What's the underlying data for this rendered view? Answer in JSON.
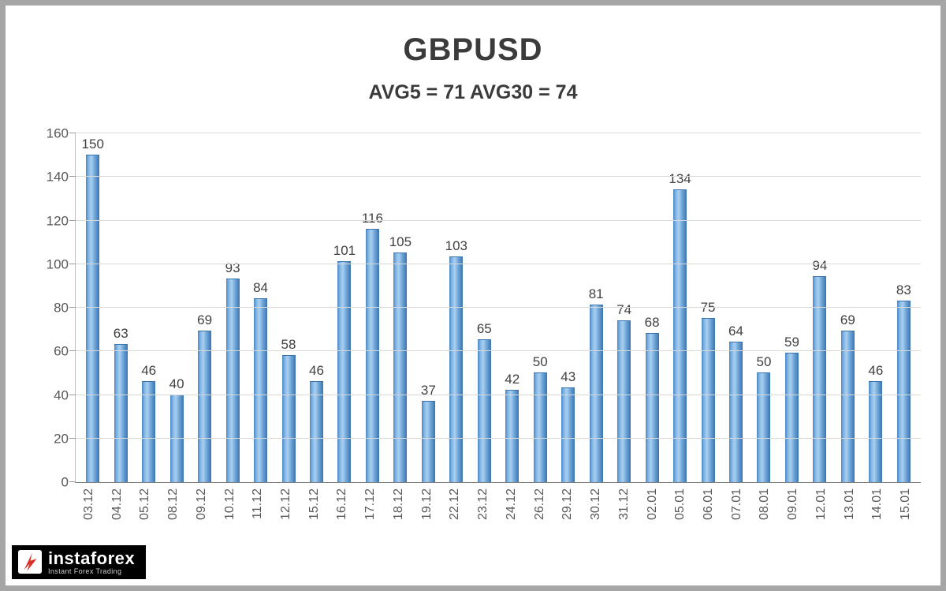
{
  "header": {
    "title": "GBPUSD",
    "subtitle": "AVG5 = 71 AVG30 = 74"
  },
  "logo": {
    "brand": "instaforex",
    "tagline": "Instant Forex Trading"
  },
  "chart_data": {
    "type": "bar",
    "title": "GBPUSD",
    "subtitle": "AVG5 = 71 AVG30 = 74",
    "categories": [
      "03.12",
      "04.12",
      "05.12",
      "08.12",
      "09.12",
      "10.12",
      "11.12",
      "12.12",
      "15.12",
      "16.12",
      "17.12",
      "18.12",
      "19.12",
      "22.12",
      "23.12",
      "24.12",
      "26.12",
      "29.12",
      "30.12",
      "31.12",
      "02.01",
      "05.01",
      "06.01",
      "07.01",
      "08.01",
      "09.01",
      "12.01",
      "13.01",
      "14.01",
      "15.01"
    ],
    "values": [
      150,
      63,
      46,
      40,
      69,
      93,
      84,
      58,
      46,
      101,
      116,
      105,
      37,
      103,
      65,
      42,
      50,
      43,
      81,
      74,
      68,
      134,
      75,
      64,
      50,
      59,
      94,
      69,
      46,
      83
    ],
    "xlabel": "",
    "ylabel": "",
    "ylim": [
      0,
      160
    ],
    "ytick_step": 20,
    "grid": true,
    "legend_position": "none",
    "bar_color": "#5b9bd5",
    "value_label_color": "#404040"
  }
}
